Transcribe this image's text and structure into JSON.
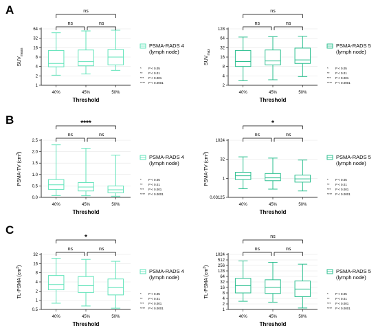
{
  "panels": [
    {
      "letter": "A"
    },
    {
      "letter": "B"
    },
    {
      "letter": "C"
    }
  ],
  "significance_key": [
    {
      "symbol": "*",
      "text": "P < 0.05"
    },
    {
      "symbol": "**",
      "text": "P < 0.01"
    },
    {
      "symbol": "***",
      "text": "P < 0.001"
    },
    {
      "symbol": "****",
      "text": "P < 0.0001"
    }
  ],
  "chart_data": [
    {
      "id": "A-left",
      "type": "box",
      "panel": "A",
      "categories": [
        "40%",
        "45%",
        "50%"
      ],
      "xlabel": "Threshold",
      "ylabel": {
        "main": "SUV",
        "sub": "mean",
        "sup": ""
      },
      "scale": "log2",
      "ylim": [
        1,
        64
      ],
      "yticks": [
        1,
        2,
        4,
        8,
        16,
        32,
        64
      ],
      "ytick_labels": [
        "1",
        "2",
        "4",
        "8",
        "16",
        "32",
        "64"
      ],
      "series": [
        {
          "name": "PSMA-RADS 4\n(lymph node)",
          "color": "#5fe3b9",
          "boxes": [
            {
              "min": 2.1,
              "q1": 3.9,
              "median": 5.0,
              "q3": 13.0,
              "max": 48
            },
            {
              "min": 2.3,
              "q1": 4.2,
              "median": 5.7,
              "q3": 13.5,
              "max": 55
            },
            {
              "min": 3.0,
              "q1": 4.5,
              "median": 8.0,
              "q3": 14.0,
              "max": 58
            }
          ]
        }
      ],
      "comparisons": [
        {
          "from": 0,
          "to": 1,
          "label": "ns"
        },
        {
          "from": 1,
          "to": 2,
          "label": "ns"
        },
        {
          "from": 0,
          "to": 2,
          "label": "ns"
        }
      ]
    },
    {
      "id": "A-right",
      "type": "box",
      "panel": "A",
      "categories": [
        "40%",
        "45%",
        "50%"
      ],
      "xlabel": "Threshold",
      "ylabel": {
        "main": "SUV",
        "sub": "max",
        "sup": ""
      },
      "scale": "log2",
      "ylim": [
        2,
        128
      ],
      "yticks": [
        2,
        4,
        8,
        16,
        32,
        64,
        128
      ],
      "ytick_labels": [
        "2",
        "4",
        "8",
        "16",
        "32",
        "64",
        "128"
      ],
      "series": [
        {
          "name": "PSMA-RADS 5\n(lymph node)",
          "color": "#2bbf8f",
          "boxes": [
            {
              "min": 2.8,
              "q1": 8.0,
              "median": 11.5,
              "q3": 26.0,
              "max": 70
            },
            {
              "min": 3.0,
              "q1": 9.0,
              "median": 12.0,
              "q3": 27.0,
              "max": 72
            },
            {
              "min": 3.8,
              "q1": 10.0,
              "median": 13.0,
              "q3": 31.0,
              "max": 74
            }
          ]
        }
      ],
      "comparisons": [
        {
          "from": 0,
          "to": 1,
          "label": "ns"
        },
        {
          "from": 1,
          "to": 2,
          "label": "ns"
        },
        {
          "from": 0,
          "to": 2,
          "label": "ns"
        }
      ]
    },
    {
      "id": "B-left",
      "type": "box",
      "panel": "B",
      "categories": [
        "40%",
        "45%",
        "50%"
      ],
      "xlabel": "Threshold",
      "ylabel": {
        "main": "PSMA-TV (cm",
        "sub": "",
        "sup": "3",
        "tail": ")"
      },
      "scale": "linear",
      "ylim": [
        0,
        2.5
      ],
      "yticks": [
        0,
        0.5,
        1,
        1.5,
        2,
        2.5
      ],
      "ytick_labels": [
        "0.0",
        "0.5",
        "1.0",
        "1.5",
        "2.0",
        "2.5"
      ],
      "series": [
        {
          "name": "PSMA-RADS 4\n(lymph node)",
          "color": "#5fe3b9",
          "boxes": [
            {
              "min": 0.08,
              "q1": 0.35,
              "median": 0.55,
              "q3": 0.78,
              "max": 2.3
            },
            {
              "min": 0.07,
              "q1": 0.28,
              "median": 0.45,
              "q3": 0.65,
              "max": 2.15
            },
            {
              "min": 0.05,
              "q1": 0.2,
              "median": 0.33,
              "q3": 0.5,
              "max": 1.85
            }
          ]
        }
      ],
      "comparisons": [
        {
          "from": 0,
          "to": 1,
          "label": "ns"
        },
        {
          "from": 1,
          "to": 2,
          "label": "ns"
        },
        {
          "from": 0,
          "to": 2,
          "label": "****"
        }
      ]
    },
    {
      "id": "B-right",
      "type": "box",
      "panel": "B",
      "categories": [
        "40%",
        "45%",
        "50%"
      ],
      "xlabel": "Threshold",
      "ylabel": {
        "main": "PSMA-TV (cm",
        "sub": "",
        "sup": "3",
        "tail": ")"
      },
      "scale": "log2",
      "ylim": [
        0.03125,
        1024
      ],
      "yticks": [
        0.03125,
        1,
        32,
        1024
      ],
      "ytick_labels": [
        "0.03125",
        "1",
        "32",
        "1024"
      ],
      "series": [
        {
          "name": "PSMA-RADS 5\n(lymph node)",
          "color": "#2bbf8f",
          "boxes": [
            {
              "min": 0.15,
              "q1": 0.8,
              "median": 1.6,
              "q3": 3.0,
              "max": 50
            },
            {
              "min": 0.14,
              "q1": 0.65,
              "median": 1.1,
              "q3": 2.4,
              "max": 40
            },
            {
              "min": 0.1,
              "q1": 0.5,
              "median": 0.9,
              "q3": 1.8,
              "max": 28
            }
          ]
        }
      ],
      "comparisons": [
        {
          "from": 0,
          "to": 1,
          "label": "ns"
        },
        {
          "from": 1,
          "to": 2,
          "label": "ns"
        },
        {
          "from": 0,
          "to": 2,
          "label": "*"
        }
      ]
    },
    {
      "id": "C-left",
      "type": "box",
      "panel": "C",
      "categories": [
        "40%",
        "45%",
        "50%"
      ],
      "xlabel": "Threshold",
      "ylabel": {
        "main": "TL-PSMA (cm",
        "sub": "",
        "sup": "3",
        "tail": ")"
      },
      "scale": "log2",
      "ylim": [
        0.5,
        32
      ],
      "yticks": [
        0.5,
        1,
        2,
        4,
        8,
        16,
        32
      ],
      "ytick_labels": [
        "0.5",
        "1",
        "2",
        "4",
        "8",
        "16",
        "32"
      ],
      "series": [
        {
          "name": "PSMA-RADS 4\n(lymph node)",
          "color": "#5fe3b9",
          "boxes": [
            {
              "min": 0.8,
              "q1": 2.2,
              "median": 3.3,
              "q3": 6.5,
              "max": 24
            },
            {
              "min": 0.65,
              "q1": 1.8,
              "median": 3.0,
              "q3": 6.0,
              "max": 22
            },
            {
              "min": 0.55,
              "q1": 1.5,
              "median": 2.6,
              "q3": 5.0,
              "max": 19
            }
          ]
        }
      ],
      "comparisons": [
        {
          "from": 0,
          "to": 1,
          "label": "ns"
        },
        {
          "from": 1,
          "to": 2,
          "label": "ns"
        },
        {
          "from": 0,
          "to": 2,
          "label": "*"
        }
      ]
    },
    {
      "id": "C-right",
      "type": "box",
      "panel": "C",
      "categories": [
        "40%",
        "45%",
        "50%"
      ],
      "xlabel": "Threshold",
      "ylabel": {
        "main": "TL-PSMA (cm",
        "sub": "",
        "sup": "3",
        "tail": ")"
      },
      "scale": "log2",
      "ylim": [
        1,
        1024
      ],
      "yticks": [
        1,
        2,
        4,
        8,
        16,
        32,
        64,
        128,
        256,
        512,
        1024
      ],
      "ytick_labels": [
        "1",
        "2",
        "4",
        "8",
        "16",
        "32",
        "64",
        "128",
        "256",
        "512",
        "1024"
      ],
      "series": [
        {
          "name": "PSMA-RADS 5\n(lymph node)",
          "color": "#2bbf8f",
          "boxes": [
            {
              "min": 2.8,
              "q1": 8.0,
              "median": 20.0,
              "q3": 50.0,
              "max": 450
            },
            {
              "min": 2.5,
              "q1": 7.5,
              "median": 16.0,
              "q3": 42.0,
              "max": 380
            },
            {
              "min": 1.2,
              "q1": 5.0,
              "median": 13.0,
              "q3": 36.0,
              "max": 300
            }
          ]
        }
      ],
      "comparisons": [
        {
          "from": 0,
          "to": 1,
          "label": "ns"
        },
        {
          "from": 1,
          "to": 2,
          "label": "ns"
        },
        {
          "from": 0,
          "to": 2,
          "label": "ns"
        }
      ]
    }
  ]
}
